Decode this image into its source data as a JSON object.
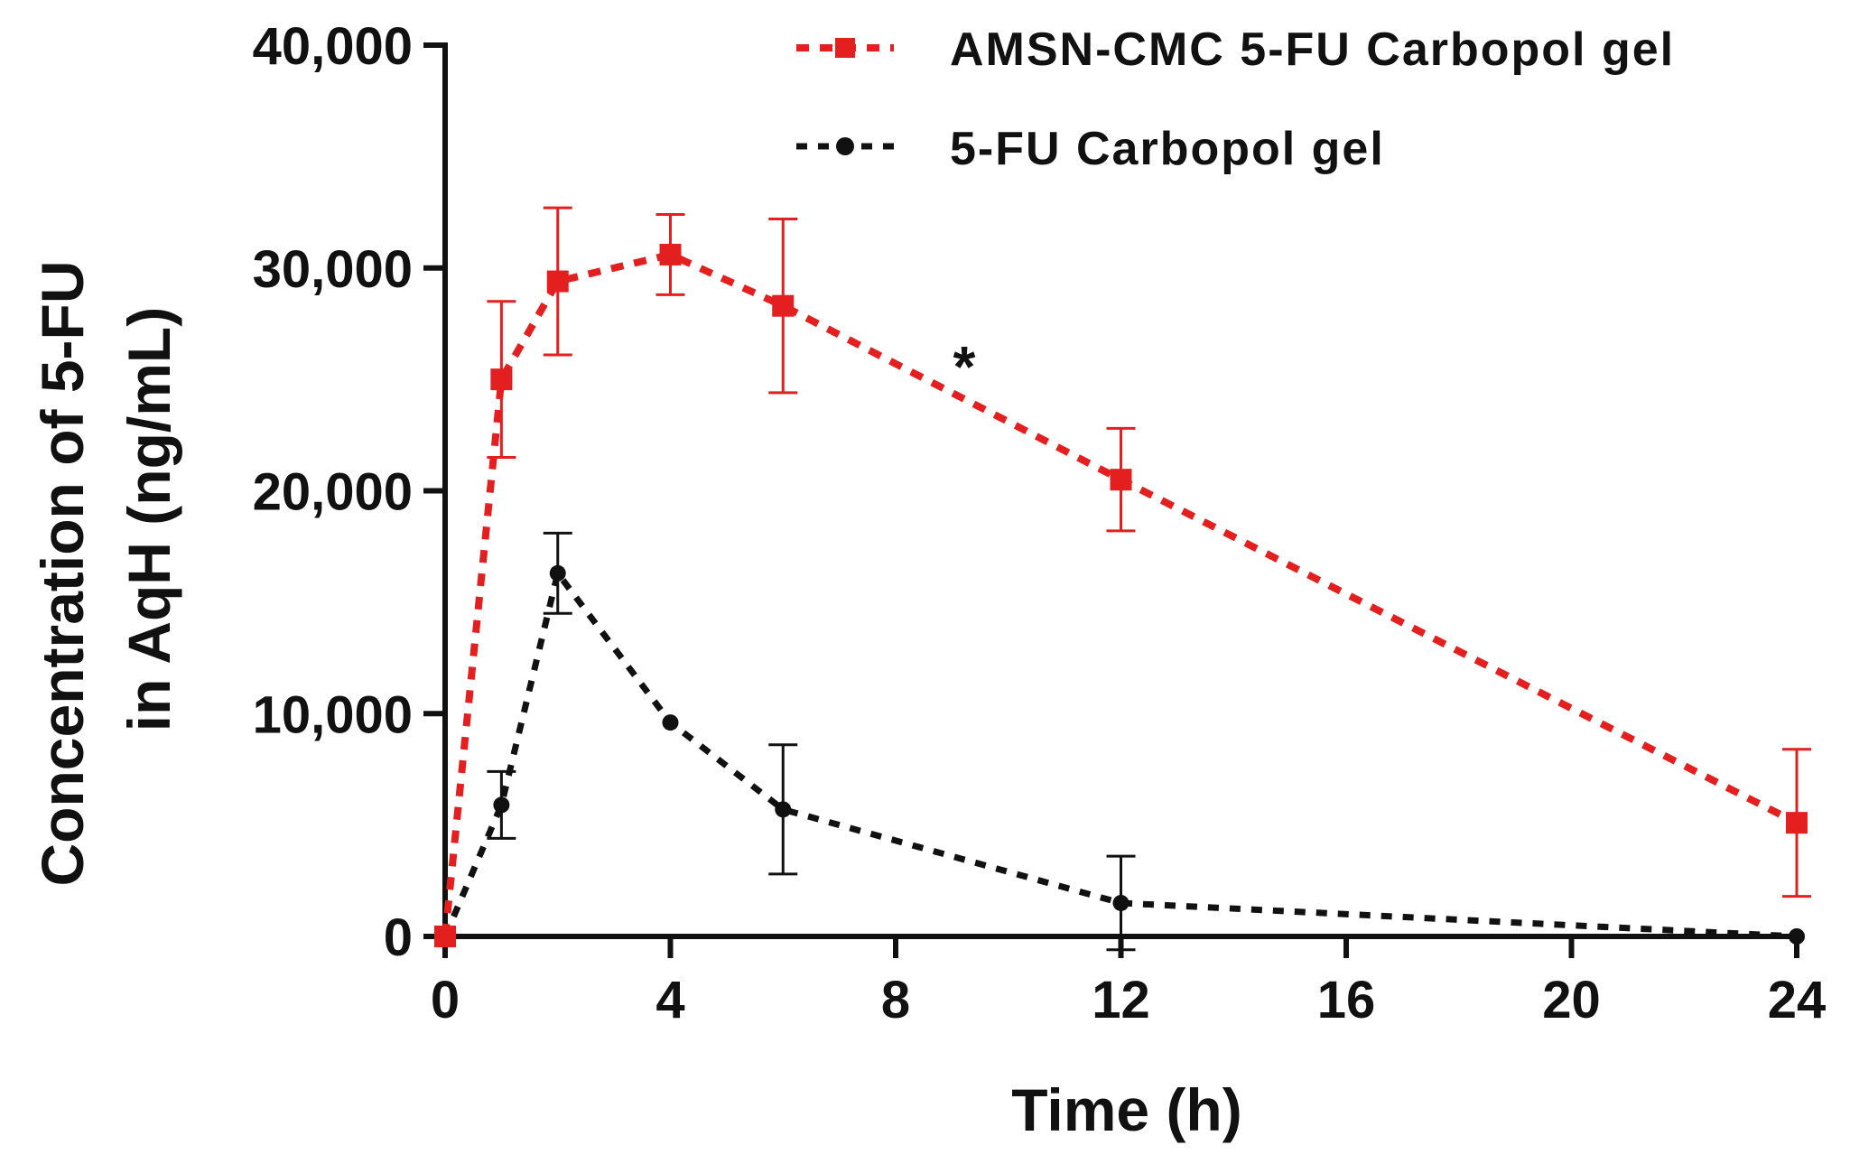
{
  "chart_data": {
    "type": "line",
    "title": "",
    "xlabel": "Time (h)",
    "ylabel_line1": "Concentration of 5-FU",
    "ylabel_line2": "in AqH (ng/mL)",
    "xlim": [
      0,
      24
    ],
    "ylim": [
      0,
      40000
    ],
    "xticks": [
      0,
      4,
      8,
      12,
      16,
      20,
      24
    ],
    "xtick_labels": [
      "0",
      "4",
      "8",
      "12",
      "16",
      "20",
      "24"
    ],
    "yticks": [
      0,
      10000,
      20000,
      30000,
      40000
    ],
    "ytick_labels": [
      "0",
      "10,000",
      "20,000",
      "30,000",
      "40,000"
    ],
    "grid": false,
    "legend_position": "top-right",
    "annotations": [
      {
        "text": "*",
        "x": 9.2,
        "y": 25500
      }
    ],
    "series": [
      {
        "name": "AMSN-CMC 5-FU Carbopol gel",
        "color": "#e41f1f",
        "marker": "square",
        "line_style": "dashed",
        "x": [
          0,
          1,
          2,
          4,
          6,
          12,
          24
        ],
        "values": [
          0,
          25000,
          29400,
          30600,
          28300,
          20500,
          5100
        ],
        "error": [
          0,
          3500,
          3300,
          1800,
          3900,
          2300,
          3300
        ]
      },
      {
        "name": "5-FU Carbopol gel",
        "color": "#111111",
        "marker": "circle",
        "line_style": "dashed",
        "x": [
          0,
          1,
          2,
          4,
          6,
          12,
          24
        ],
        "values": [
          0,
          5900,
          16300,
          9600,
          5700,
          1500,
          0
        ],
        "error": [
          0,
          1500,
          1800,
          0,
          2900,
          2100,
          0
        ]
      }
    ]
  }
}
